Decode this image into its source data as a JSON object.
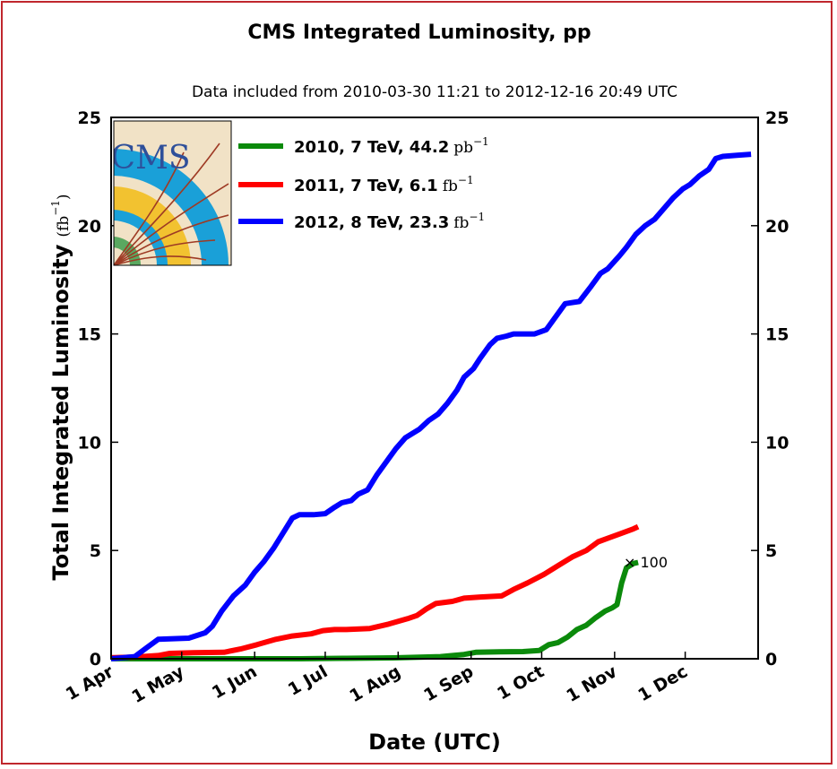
{
  "colors": {
    "frame": "#c0272d",
    "s2010": "#0b8a0b",
    "s2011": "#ff0000",
    "s2012": "#0000ff",
    "logo_bg": "#f1e2c6",
    "logo_blue": "#1aa0d8",
    "logo_yellow": "#f2c230",
    "logo_track": "#9e3a24"
  },
  "logo": {
    "text": "CMS"
  },
  "chart_data": {
    "type": "line",
    "title": "CMS Integrated Luminosity, pp",
    "subtitle": "Data included from 2010-03-30 11:21 to 2012-12-16 20:49 UTC",
    "xlabel": "Date (UTC)",
    "ylabel_main": "Total Integrated Luminosity",
    "ylabel_unit": "(fb",
    "ylabel_sup": "−1",
    "ylabel_close": ")",
    "x_unit": "day of year (0 = 1 Apr)",
    "xlim": [
      0,
      275
    ],
    "ylim": [
      0,
      25
    ],
    "x_ticks": [
      {
        "label": "1 Apr",
        "x": 0
      },
      {
        "label": "1 May",
        "x": 30
      },
      {
        "label": "1 Jun",
        "x": 61
      },
      {
        "label": "1 Jul",
        "x": 91
      },
      {
        "label": "1 Aug",
        "x": 122
      },
      {
        "label": "1 Sep",
        "x": 153
      },
      {
        "label": "1 Oct",
        "x": 183
      },
      {
        "label": "1 Nov",
        "x": 214
      },
      {
        "label": "1 Dec",
        "x": 244
      }
    ],
    "y_ticks": [
      "0",
      "5",
      "10",
      "15",
      "20",
      "25"
    ],
    "grid": false,
    "legend_position": "top-left",
    "series": [
      {
        "name": "2010",
        "legend_label": "2010, 7 TeV, 44.2",
        "legend_unit": "pb",
        "legend_sup": "−1",
        "scale_annotation": "× 100",
        "points": [
          [
            0,
            0
          ],
          [
            20,
            0
          ],
          [
            40,
            0
          ],
          [
            60,
            0
          ],
          [
            80,
            0
          ],
          [
            100,
            0.02
          ],
          [
            120,
            0.04
          ],
          [
            140,
            0.1
          ],
          [
            150,
            0.2
          ],
          [
            155,
            0.3
          ],
          [
            165,
            0.32
          ],
          [
            175,
            0.33
          ],
          [
            182,
            0.38
          ],
          [
            186,
            0.65
          ],
          [
            190,
            0.75
          ],
          [
            194,
            1.0
          ],
          [
            198,
            1.35
          ],
          [
            202,
            1.55
          ],
          [
            206,
            1.9
          ],
          [
            210,
            2.2
          ],
          [
            213,
            2.35
          ],
          [
            215,
            2.5
          ],
          [
            217,
            3.5
          ],
          [
            219,
            4.2
          ],
          [
            222,
            4.4
          ],
          [
            224,
            4.45
          ]
        ]
      },
      {
        "name": "2011",
        "legend_label": "2011, 7 TeV, 6.1",
        "legend_unit": "fb",
        "legend_sup": "−1",
        "points": [
          [
            0,
            0.05
          ],
          [
            10,
            0.08
          ],
          [
            20,
            0.15
          ],
          [
            25,
            0.25
          ],
          [
            35,
            0.28
          ],
          [
            48,
            0.3
          ],
          [
            55,
            0.45
          ],
          [
            62,
            0.65
          ],
          [
            70,
            0.9
          ],
          [
            77,
            1.05
          ],
          [
            85,
            1.15
          ],
          [
            90,
            1.3
          ],
          [
            95,
            1.35
          ],
          [
            100,
            1.35
          ],
          [
            110,
            1.4
          ],
          [
            118,
            1.6
          ],
          [
            126,
            1.85
          ],
          [
            130,
            2.0
          ],
          [
            134,
            2.3
          ],
          [
            138,
            2.55
          ],
          [
            145,
            2.65
          ],
          [
            150,
            2.8
          ],
          [
            157,
            2.85
          ],
          [
            166,
            2.9
          ],
          [
            171,
            3.2
          ],
          [
            177,
            3.5
          ],
          [
            184,
            3.9
          ],
          [
            190,
            4.3
          ],
          [
            196,
            4.7
          ],
          [
            202,
            5.0
          ],
          [
            207,
            5.4
          ],
          [
            212,
            5.6
          ],
          [
            217,
            5.8
          ],
          [
            222,
            6.0
          ],
          [
            224,
            6.1
          ]
        ]
      },
      {
        "name": "2012",
        "legend_label": "2012, 8 TeV, 23.3",
        "legend_unit": "fb",
        "legend_sup": "−1",
        "points": [
          [
            0,
            0
          ],
          [
            10,
            0.1
          ],
          [
            15,
            0.5
          ],
          [
            20,
            0.9
          ],
          [
            33,
            0.95
          ],
          [
            40,
            1.2
          ],
          [
            43,
            1.5
          ],
          [
            47,
            2.2
          ],
          [
            52,
            2.9
          ],
          [
            57,
            3.4
          ],
          [
            61,
            4.0
          ],
          [
            65,
            4.5
          ],
          [
            69,
            5.1
          ],
          [
            73,
            5.8
          ],
          [
            77,
            6.5
          ],
          [
            80,
            6.65
          ],
          [
            86,
            6.65
          ],
          [
            91,
            6.7
          ],
          [
            95,
            7.0
          ],
          [
            98,
            7.2
          ],
          [
            102,
            7.3
          ],
          [
            105,
            7.6
          ],
          [
            109,
            7.8
          ],
          [
            113,
            8.5
          ],
          [
            117,
            9.1
          ],
          [
            121,
            9.7
          ],
          [
            125,
            10.2
          ],
          [
            128,
            10.4
          ],
          [
            131,
            10.6
          ],
          [
            135,
            11.0
          ],
          [
            139,
            11.3
          ],
          [
            143,
            11.8
          ],
          [
            147,
            12.4
          ],
          [
            150,
            13.0
          ],
          [
            154,
            13.4
          ],
          [
            157,
            13.9
          ],
          [
            161,
            14.5
          ],
          [
            164,
            14.8
          ],
          [
            168,
            14.9
          ],
          [
            171,
            15.0
          ],
          [
            180,
            15.0
          ],
          [
            185,
            15.2
          ],
          [
            189,
            15.8
          ],
          [
            193,
            16.4
          ],
          [
            199,
            16.5
          ],
          [
            204,
            17.2
          ],
          [
            208,
            17.8
          ],
          [
            211,
            18.0
          ],
          [
            216,
            18.6
          ],
          [
            219,
            19.0
          ],
          [
            223,
            19.6
          ],
          [
            227,
            20.0
          ],
          [
            231,
            20.3
          ],
          [
            235,
            20.8
          ],
          [
            239,
            21.3
          ],
          [
            243,
            21.7
          ],
          [
            246,
            21.9
          ],
          [
            250,
            22.3
          ],
          [
            254,
            22.6
          ],
          [
            257,
            23.1
          ],
          [
            260,
            23.2
          ],
          [
            266,
            23.25
          ],
          [
            272,
            23.3
          ]
        ]
      }
    ]
  }
}
